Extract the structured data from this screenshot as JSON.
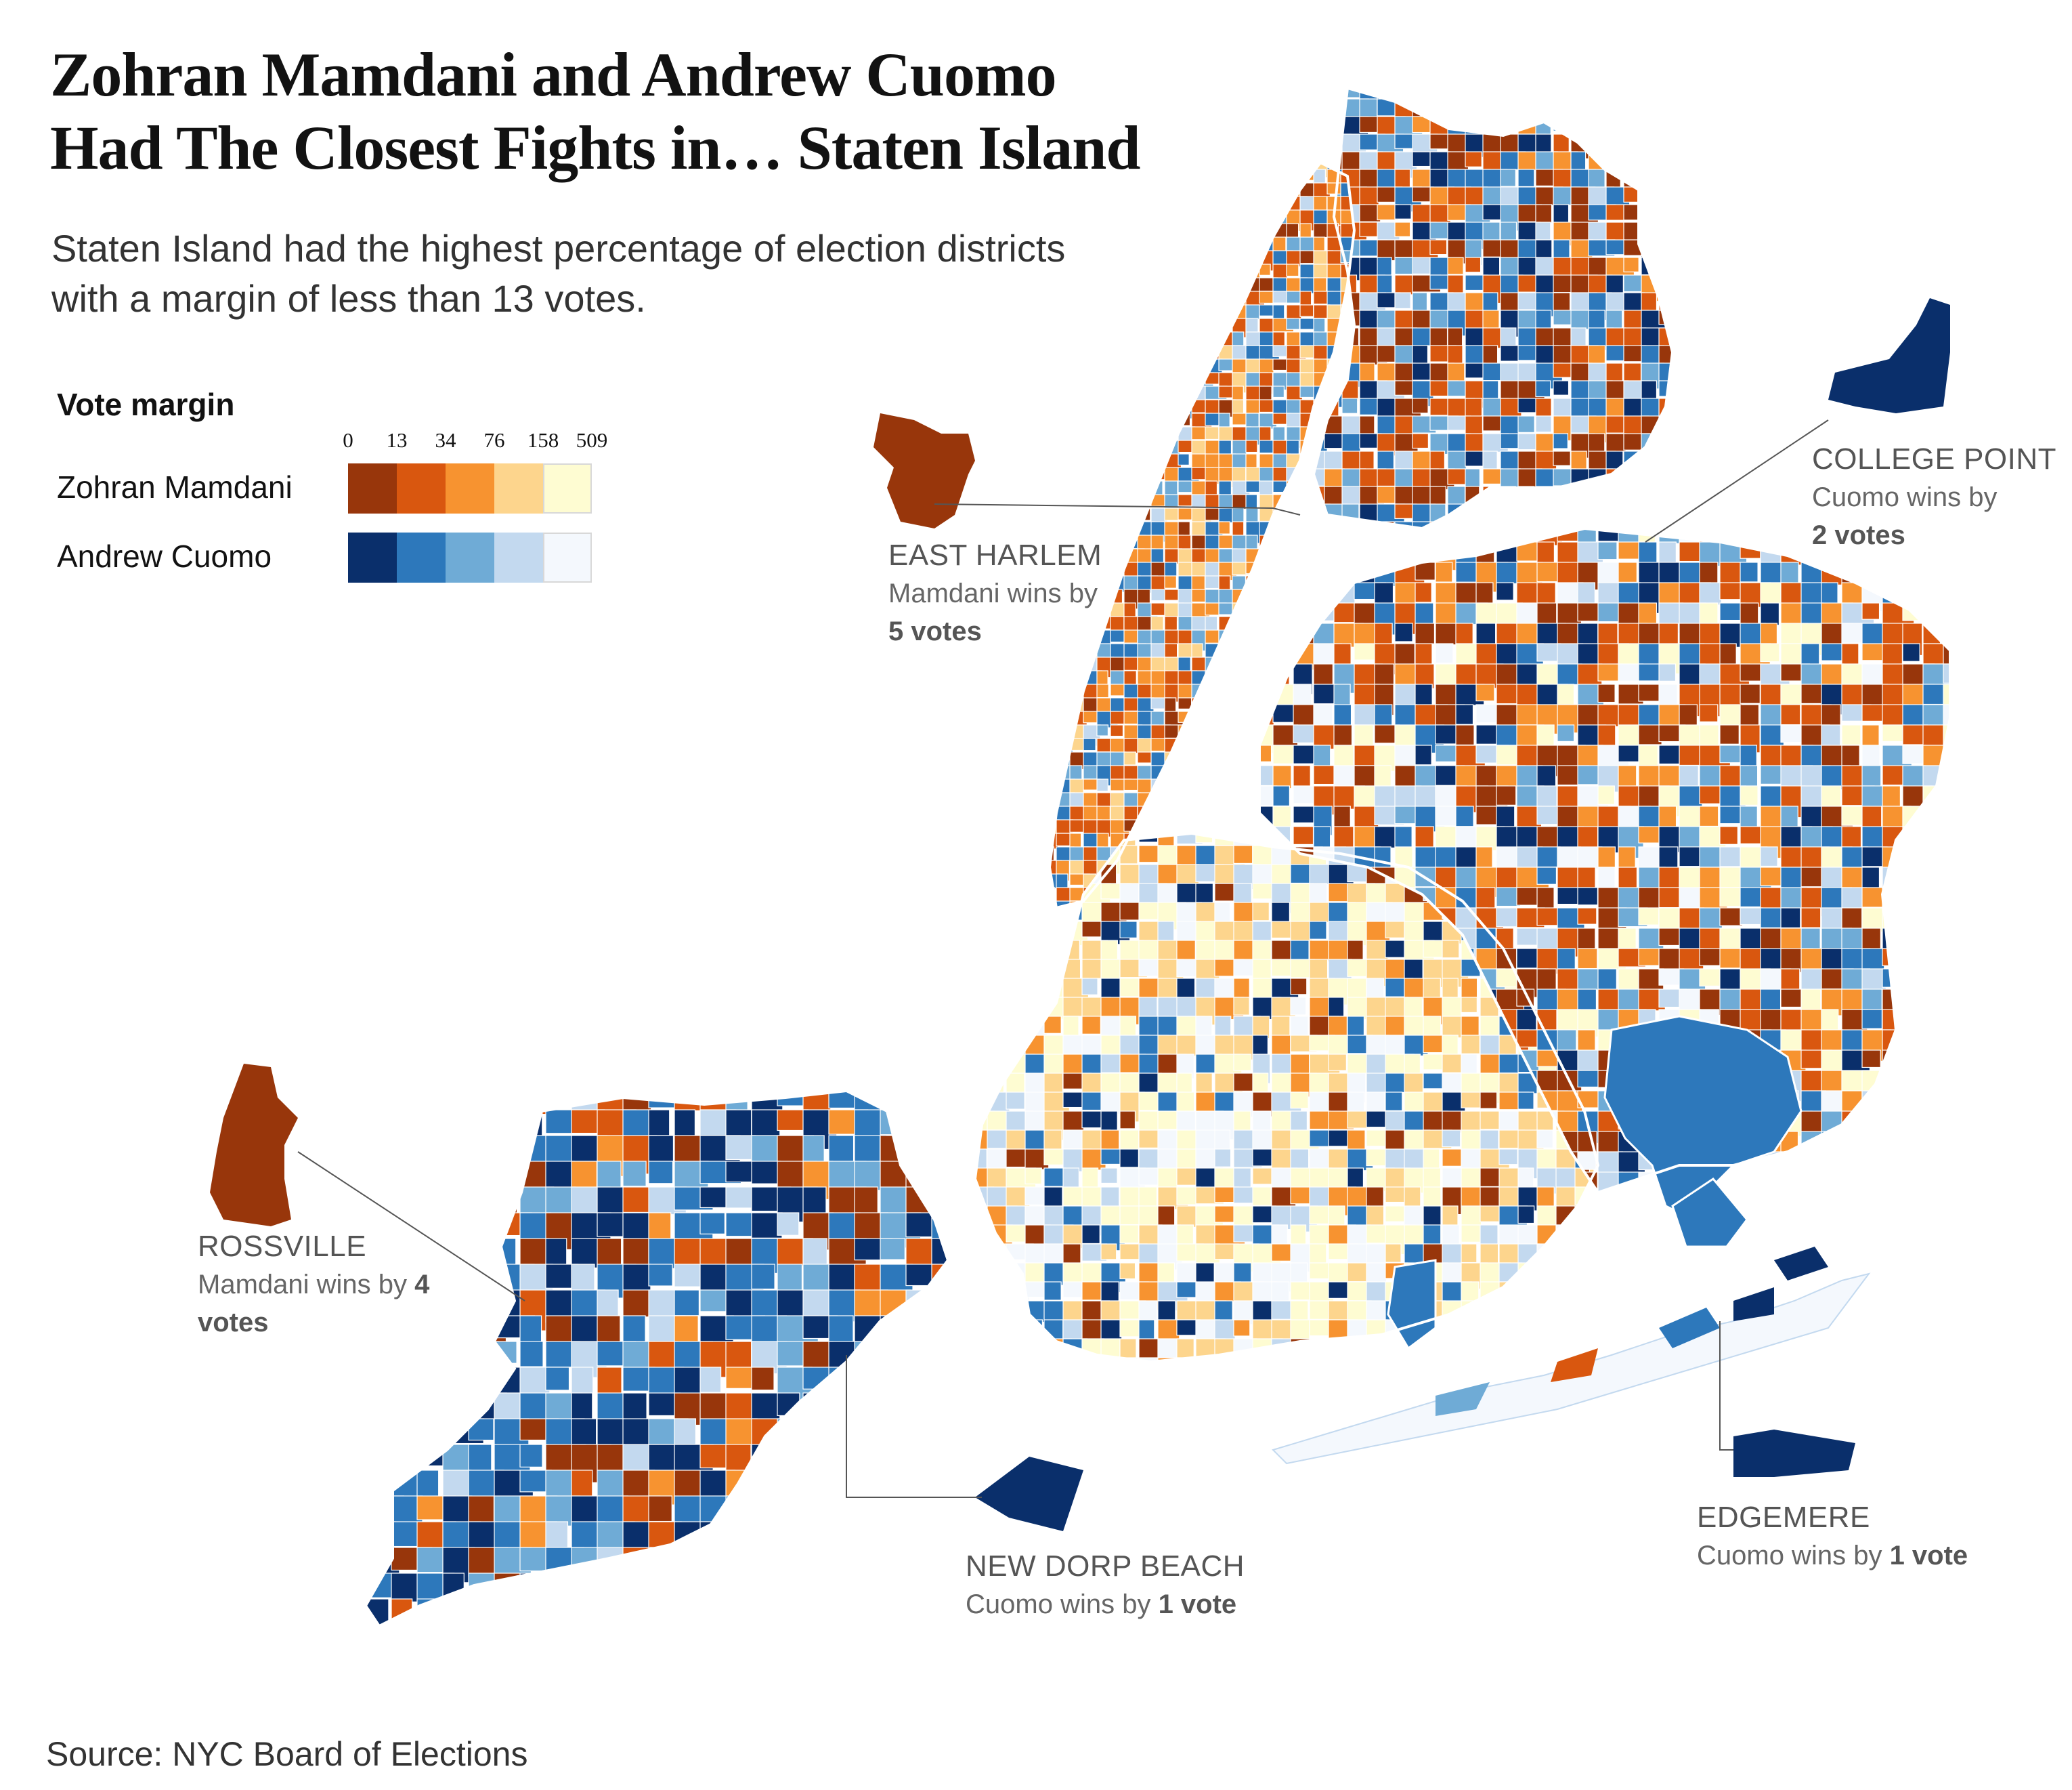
{
  "title_line1": "Zohran Mamdani and Andrew Cuomo",
  "title_line2": "Had The Closest Fights in… Staten Island",
  "subtitle_line1": "Staten Island had the highest percentage of election districts",
  "subtitle_line2": "with a margin of less than 13 votes.",
  "legend": {
    "title": "Vote margin",
    "ticks": [
      "0",
      "13",
      "34",
      "76",
      "158",
      "509"
    ],
    "rows": [
      {
        "label": "Zohran Mamdani",
        "colors": [
          "#98360b",
          "#d9570f",
          "#f79330",
          "#fdd58d",
          "#fefcd2"
        ]
      },
      {
        "label": "Andrew Cuomo",
        "colors": [
          "#0a2f6b",
          "#2d78bb",
          "#6fabd6",
          "#c3d9ef",
          "#f4f8fd"
        ]
      }
    ]
  },
  "callouts": [
    {
      "place": "EAST HARLEM",
      "text": "Mamdani wins by",
      "value": "5 votes",
      "winner": "Mamdani"
    },
    {
      "place": "COLLEGE POINT",
      "text": "Cuomo wins by",
      "value": "2 votes",
      "winner": "Cuomo"
    },
    {
      "place": "ROSSVILLE",
      "text": "Mamdani wins by",
      "value_inline": "4",
      "value": "votes",
      "winner": "Mamdani"
    },
    {
      "place": "NEW DORP BEACH",
      "text": "Cuomo wins by",
      "value": "1 vote",
      "winner": "Cuomo"
    },
    {
      "place": "EDGEMERE",
      "text": "Cuomo wins by",
      "value": "1 vote",
      "winner": "Cuomo"
    }
  ],
  "source": "Source: NYC Board of Elections"
}
